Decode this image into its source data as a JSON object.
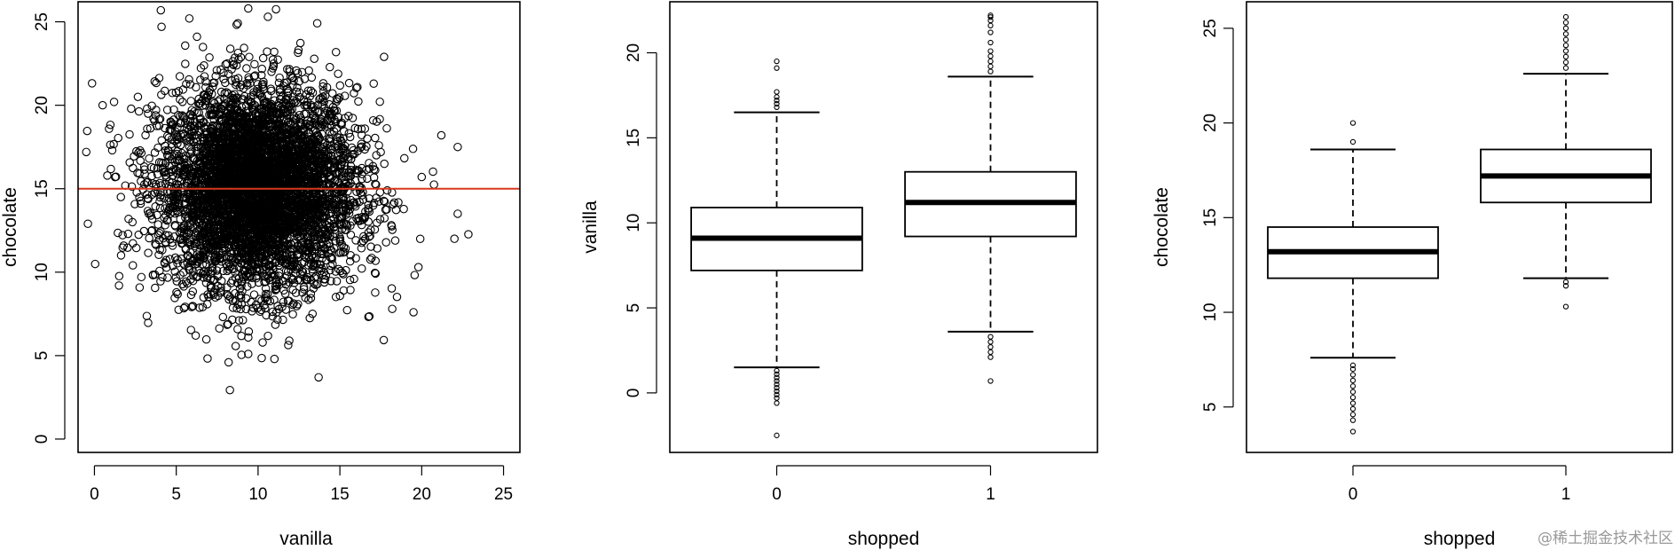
{
  "chart_data": [
    {
      "type": "scatter",
      "xlabel": "vanilla",
      "ylabel": "chocolate",
      "xlim": [
        -1,
        26
      ],
      "ylim": [
        -0.8,
        26.2
      ],
      "xticks": [
        0,
        5,
        10,
        15,
        20,
        25
      ],
      "yticks": [
        0,
        5,
        10,
        15,
        20,
        25
      ],
      "point_style": "open circle",
      "point_color": "#000000",
      "cloud": {
        "center_x": 10,
        "center_y": 15,
        "sd_x": 3,
        "sd_y": 3
      },
      "outliers": [
        [
          13.7,
          3.7
        ],
        [
          8.2,
          4.6
        ],
        [
          9.4,
          5.1
        ],
        [
          11.0,
          4.8
        ],
        [
          18.2,
          7.8
        ],
        [
          19.5,
          7.6
        ],
        [
          22.0,
          12.0
        ],
        [
          22.2,
          13.5
        ],
        [
          19.8,
          10.3
        ],
        [
          21.2,
          18.2
        ],
        [
          22.2,
          17.5
        ],
        [
          0.5,
          20.0
        ],
        [
          1.2,
          20.2
        ],
        [
          -0.5,
          17.2
        ],
        [
          -0.4,
          12.9
        ],
        [
          1.5,
          9.2
        ],
        [
          4.1,
          24.7
        ],
        [
          5.8,
          25.2
        ],
        [
          9.4,
          25.8
        ],
        [
          10.6,
          25.3
        ],
        [
          17.7,
          22.9
        ],
        [
          20.0,
          15.7
        ]
      ],
      "reference_line": {
        "y": 15.0,
        "color": "#d9381e"
      },
      "grid": false
    },
    {
      "type": "boxplot",
      "xlabel": "shopped",
      "ylabel": "vanilla",
      "categories": [
        "0",
        "1"
      ],
      "ylim": [
        -3.5,
        23.0
      ],
      "yticks": [
        0,
        5,
        10,
        15,
        20
      ],
      "boxes": [
        {
          "category": "0",
          "whisker_low": 1.5,
          "q1": 7.2,
          "median": 9.1,
          "q3": 10.9,
          "whisker_high": 16.5,
          "outliers": [
            1.3,
            1.1,
            0.9,
            0.7,
            0.5,
            0.3,
            0.1,
            -0.1,
            -0.3,
            -0.6,
            -2.5,
            16.8,
            17.0,
            17.2,
            17.4,
            17.7,
            19.1,
            19.5
          ]
        },
        {
          "category": "1",
          "whisker_low": 3.6,
          "q1": 9.2,
          "median": 11.2,
          "q3": 13.0,
          "whisker_high": 18.6,
          "outliers": [
            3.3,
            3.0,
            2.7,
            2.4,
            2.1,
            0.7,
            18.9,
            19.2,
            19.5,
            19.8,
            20.1,
            20.6,
            21.2,
            21.6,
            21.9,
            22.1,
            22.2
          ]
        }
      ],
      "grid": false
    },
    {
      "type": "boxplot",
      "xlabel": "shopped",
      "ylabel": "chocolate",
      "categories": [
        "0",
        "1"
      ],
      "ylim": [
        2.6,
        26.4
      ],
      "yticks": [
        5,
        10,
        15,
        20,
        25
      ],
      "boxes": [
        {
          "category": "0",
          "whisker_low": 7.6,
          "q1": 11.8,
          "median": 13.2,
          "q3": 14.5,
          "whisker_high": 18.6,
          "outliers": [
            7.2,
            7.0,
            6.7,
            6.4,
            6.1,
            5.8,
            5.5,
            5.2,
            4.9,
            4.6,
            4.3,
            3.7,
            19.0,
            20.0
          ]
        },
        {
          "category": "1",
          "whisker_low": 11.8,
          "q1": 15.8,
          "median": 17.2,
          "q3": 18.6,
          "whisker_high": 22.6,
          "outliers": [
            11.6,
            11.4,
            10.3,
            22.9,
            23.2,
            23.5,
            23.8,
            24.1,
            24.4,
            24.7,
            25.0,
            25.3,
            25.6
          ]
        }
      ],
      "grid": false
    }
  ],
  "watermark": "@稀土掘金技术社区"
}
